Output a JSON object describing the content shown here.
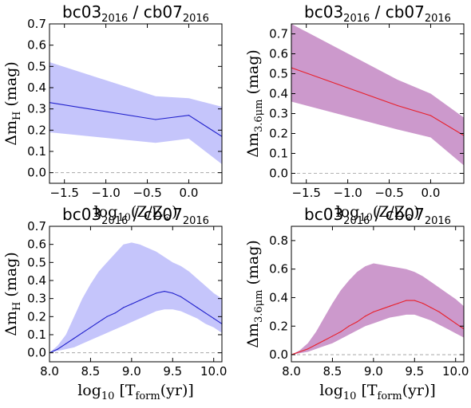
{
  "colors": {
    "blue_line": "#2020cc",
    "blue_band": "#c5c5fb",
    "red_line": "#e8202a",
    "magenta_band": "#cc99cc"
  },
  "chart_data": [
    {
      "type": "area",
      "title_main": "bc03",
      "title_sub1": "2016",
      "title_mid": " / cb07",
      "title_sub2": "2016",
      "ylabel_main": "Δm",
      "ylabel_sub": "H",
      "ylabel_unit": " (mag)",
      "xlabel_main": "log",
      "xlabel_sub": "10",
      "xlabel_rest": "(Z/Z",
      "xlabel_sym": "⊙",
      "xlabel_end": ")",
      "xlim": [
        -1.68,
        0.4
      ],
      "ylim": [
        -0.05,
        0.7
      ],
      "xticks": [
        -1.5,
        -1.0,
        -0.5,
        0.0
      ],
      "xticklabels": [
        "−1.5",
        "−1.0",
        "−0.5",
        "0.0"
      ],
      "yticks": [
        0.0,
        0.1,
        0.2,
        0.3,
        0.4,
        0.5,
        0.6,
        0.7
      ],
      "yticklabels": [
        "0.0",
        "0.1",
        "0.2",
        "0.3",
        "0.4",
        "0.5",
        "0.6",
        "0.7"
      ],
      "line_color": "#2020cc",
      "band_color": "#c5c5fb",
      "x": [
        -1.68,
        -0.4,
        0.0,
        0.4
      ],
      "y": [
        0.33,
        0.25,
        0.27,
        0.17
      ],
      "upper": [
        0.52,
        0.36,
        0.35,
        0.31
      ],
      "lower": [
        0.19,
        0.14,
        0.16,
        0.04
      ]
    },
    {
      "type": "area",
      "title_main": "bc03",
      "title_sub1": "2016",
      "title_mid": " / cb07",
      "title_sub2": "2016",
      "ylabel_main": "Δm",
      "ylabel_sub": "3.6μm",
      "ylabel_unit": " (mag)",
      "xlabel_main": "log",
      "xlabel_sub": "10",
      "xlabel_rest": "(Z/Z",
      "xlabel_sym": "⊙",
      "xlabel_end": ")",
      "xlim": [
        -1.68,
        0.4
      ],
      "ylim": [
        -0.05,
        0.75
      ],
      "xticks": [
        -1.5,
        -1.0,
        -0.5,
        0.0
      ],
      "xticklabels": [
        "−1.5",
        "−1.0",
        "−0.5",
        "0.0"
      ],
      "yticks": [
        0.0,
        0.1,
        0.2,
        0.3,
        0.4,
        0.5,
        0.6,
        0.7
      ],
      "yticklabels": [
        "0.0",
        "0.1",
        "0.2",
        "0.3",
        "0.4",
        "0.5",
        "0.6",
        "0.7"
      ],
      "line_color": "#e8202a",
      "band_color": "#cc99cc",
      "x": [
        -1.68,
        -0.4,
        0.0,
        0.4
      ],
      "y": [
        0.53,
        0.34,
        0.29,
        0.19
      ],
      "upper": [
        0.75,
        0.47,
        0.4,
        0.28
      ],
      "lower": [
        0.36,
        0.22,
        0.18,
        0.04
      ]
    },
    {
      "type": "area",
      "title_main": "bc03",
      "title_sub1": "2016",
      "title_mid": " / cb07",
      "title_sub2": "2016",
      "ylabel_main": "Δm",
      "ylabel_sub": "H",
      "ylabel_unit": " (mag)",
      "xlabel_main": "log",
      "xlabel_sub": "10",
      "xlabel_rest": " [T",
      "xlabel_sub2": "form",
      "xlabel_end": "(yr)]",
      "xlim": [
        8.0,
        10.1
      ],
      "ylim": [
        -0.05,
        0.7
      ],
      "xticks": [
        8.0,
        8.5,
        9.0,
        9.5,
        10.0
      ],
      "xticklabels": [
        "8.0",
        "8.5",
        "9.0",
        "9.5",
        "10.0"
      ],
      "yticks": [
        0.0,
        0.1,
        0.2,
        0.3,
        0.4,
        0.5,
        0.6,
        0.7
      ],
      "yticklabels": [
        "0.0",
        "0.1",
        "0.2",
        "0.3",
        "0.4",
        "0.5",
        "0.6",
        "0.7"
      ],
      "line_color": "#2020cc",
      "band_color": "#c5c5fb",
      "x": [
        8.0,
        8.1,
        8.2,
        8.3,
        8.4,
        8.5,
        8.6,
        8.7,
        8.8,
        8.9,
        9.0,
        9.1,
        9.2,
        9.3,
        9.4,
        9.5,
        9.6,
        9.7,
        9.8,
        9.9,
        10.0,
        10.1
      ],
      "y": [
        0.0,
        0.02,
        0.05,
        0.08,
        0.11,
        0.14,
        0.17,
        0.2,
        0.22,
        0.25,
        0.27,
        0.29,
        0.31,
        0.33,
        0.34,
        0.33,
        0.31,
        0.28,
        0.25,
        0.22,
        0.19,
        0.16
      ],
      "upper": [
        0.0,
        0.04,
        0.1,
        0.2,
        0.3,
        0.38,
        0.45,
        0.5,
        0.55,
        0.6,
        0.61,
        0.6,
        0.58,
        0.56,
        0.53,
        0.5,
        0.48,
        0.45,
        0.41,
        0.37,
        0.33,
        0.3
      ],
      "lower": [
        0.0,
        0.01,
        0.02,
        0.03,
        0.05,
        0.07,
        0.09,
        0.11,
        0.13,
        0.15,
        0.17,
        0.19,
        0.21,
        0.23,
        0.24,
        0.24,
        0.23,
        0.21,
        0.19,
        0.16,
        0.14,
        0.11
      ]
    },
    {
      "type": "area",
      "title_main": "bc03",
      "title_sub1": "2016",
      "title_mid": " / cb07",
      "title_sub2": "2016",
      "ylabel_main": "Δm",
      "ylabel_sub": "3.6μm",
      "ylabel_unit": " (mag)",
      "xlabel_main": "log",
      "xlabel_sub": "10",
      "xlabel_rest": " [T",
      "xlabel_sub2": "form",
      "xlabel_end": "(yr)]",
      "xlim": [
        8.0,
        10.1
      ],
      "ylim": [
        -0.05,
        0.9
      ],
      "xticks": [
        8.0,
        8.5,
        9.0,
        9.5,
        10.0
      ],
      "xticklabels": [
        "8.0",
        "8.5",
        "9.0",
        "9.5",
        "10.0"
      ],
      "yticks": [
        0.0,
        0.2,
        0.4,
        0.6,
        0.8
      ],
      "yticklabels": [
        "0.0",
        "0.2",
        "0.4",
        "0.6",
        "0.8"
      ],
      "line_color": "#e8202a",
      "band_color": "#cc99cc",
      "x": [
        8.0,
        8.1,
        8.2,
        8.3,
        8.4,
        8.5,
        8.6,
        8.7,
        8.8,
        8.9,
        9.0,
        9.1,
        9.2,
        9.3,
        9.4,
        9.5,
        9.6,
        9.7,
        9.8,
        9.9,
        10.0,
        10.1
      ],
      "y": [
        0.0,
        0.02,
        0.04,
        0.07,
        0.1,
        0.13,
        0.16,
        0.2,
        0.23,
        0.27,
        0.3,
        0.32,
        0.34,
        0.36,
        0.38,
        0.38,
        0.36,
        0.33,
        0.3,
        0.26,
        0.22,
        0.18
      ],
      "upper": [
        0.0,
        0.03,
        0.08,
        0.16,
        0.26,
        0.36,
        0.45,
        0.52,
        0.58,
        0.62,
        0.64,
        0.63,
        0.62,
        0.61,
        0.6,
        0.58,
        0.55,
        0.51,
        0.47,
        0.43,
        0.39,
        0.34
      ],
      "lower": [
        0.0,
        0.01,
        0.02,
        0.04,
        0.06,
        0.08,
        0.11,
        0.14,
        0.17,
        0.2,
        0.22,
        0.24,
        0.26,
        0.27,
        0.28,
        0.28,
        0.26,
        0.24,
        0.21,
        0.18,
        0.15,
        0.12
      ]
    }
  ]
}
